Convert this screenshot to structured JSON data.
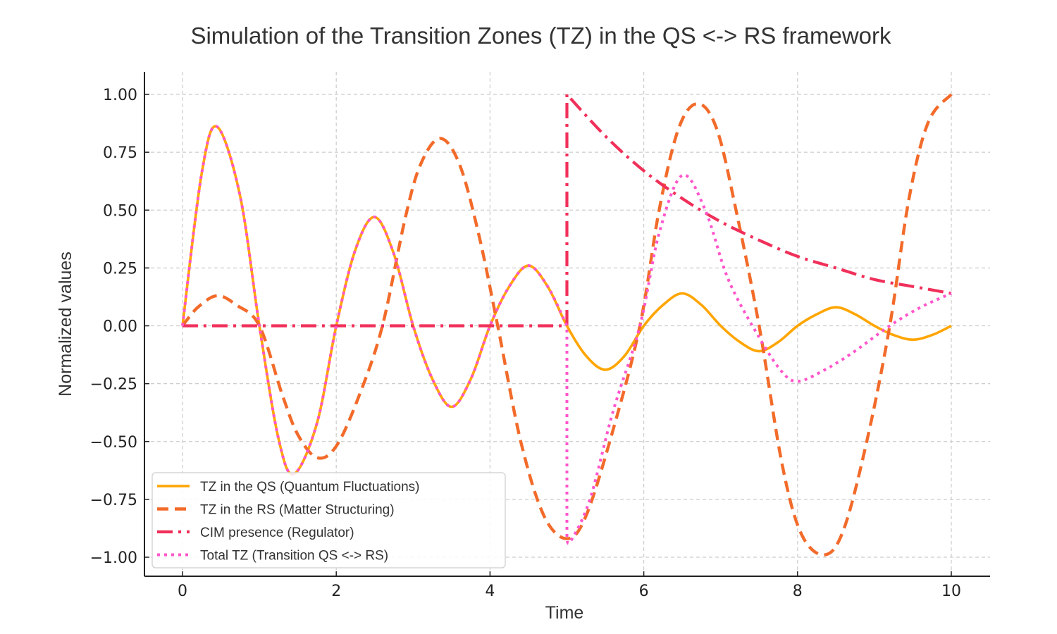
{
  "chart_data": {
    "type": "line",
    "title": "Simulation of the Transition Zones (TZ) in the QS <-> RS framework",
    "xlabel": "Time",
    "ylabel": "Normalized values",
    "xlim": [
      -0.5,
      10.5
    ],
    "ylim": [
      -1.08,
      1.1
    ],
    "xticks": [
      0,
      2,
      4,
      6,
      8,
      10
    ],
    "xtick_labels": [
      "0",
      "2",
      "4",
      "6",
      "8",
      "10"
    ],
    "yticks": [
      1.0,
      0.75,
      0.5,
      0.25,
      0.0,
      -0.25,
      -0.5,
      -0.75,
      -1.0
    ],
    "ytick_labels": [
      "1.00",
      "0.75",
      "0.50",
      "0.25",
      "0.00",
      "−0.25",
      "−0.50",
      "−0.75",
      "−1.00"
    ],
    "grid": true,
    "legend_position": "lower-left",
    "series": [
      {
        "name": "TZ in the QS (Quantum Fluctuations)",
        "color": "#FFA500",
        "style": "solid",
        "x": [
          0,
          0.25,
          0.45,
          0.75,
          1.0,
          1.25,
          1.45,
          1.75,
          2.0,
          2.25,
          2.5,
          2.75,
          3.0,
          3.25,
          3.5,
          3.75,
          4.0,
          4.25,
          4.5,
          4.75,
          5.0,
          5.25,
          5.5,
          5.75,
          6.0,
          6.25,
          6.5,
          6.75,
          7.0,
          7.25,
          7.5,
          7.75,
          8.0,
          8.25,
          8.5,
          8.75,
          9.0,
          9.25,
          9.5,
          9.75,
          10.0
        ],
        "y": [
          0,
          0.66,
          0.86,
          0.56,
          0,
          -0.49,
          -0.64,
          -0.42,
          0,
          0.33,
          0.47,
          0.31,
          0,
          -0.23,
          -0.35,
          -0.23,
          0,
          0.17,
          0.26,
          0.17,
          0,
          -0.13,
          -0.19,
          -0.13,
          0,
          0.09,
          0.14,
          0.09,
          0,
          -0.07,
          -0.11,
          -0.07,
          0,
          0.05,
          0.08,
          0.05,
          0,
          -0.04,
          -0.06,
          -0.04,
          0
        ]
      },
      {
        "name": "TZ in the RS (Matter Structuring)",
        "color": "#F26B2A",
        "style": "dashed",
        "x": [
          0,
          0.2,
          0.45,
          0.7,
          1.0,
          1.3,
          1.5,
          1.75,
          2.0,
          2.3,
          2.6,
          2.9,
          3.1,
          3.35,
          3.6,
          3.85,
          4.1,
          4.4,
          4.7,
          5.0,
          5.25,
          5.6,
          5.95,
          6.2,
          6.45,
          6.7,
          6.95,
          7.2,
          7.5,
          7.8,
          8.05,
          8.35,
          8.6,
          8.9,
          9.2,
          9.45,
          9.7,
          10.0
        ],
        "y": [
          0,
          0.08,
          0.13,
          0.09,
          0.0,
          -0.3,
          -0.47,
          -0.57,
          -0.52,
          -0.3,
          0.0,
          0.47,
          0.7,
          0.81,
          0.7,
          0.4,
          0.0,
          -0.5,
          -0.82,
          -0.92,
          -0.82,
          -0.45,
          0.0,
          0.5,
          0.85,
          0.96,
          0.85,
          0.5,
          0.0,
          -0.6,
          -0.9,
          -0.99,
          -0.88,
          -0.5,
          0.0,
          0.55,
          0.88,
          1.0
        ]
      },
      {
        "name": "CIM presence (Regulator)",
        "color": "#F0305A",
        "style": "dashdot",
        "x": [
          0,
          5.0,
          5.0,
          5.5,
          6.0,
          6.5,
          7.0,
          7.5,
          8.0,
          8.5,
          9.0,
          9.5,
          10.0
        ],
        "y": [
          0,
          0,
          1.0,
          0.82,
          0.67,
          0.55,
          0.45,
          0.37,
          0.3,
          0.25,
          0.2,
          0.17,
          0.14
        ]
      },
      {
        "name": "Total TZ (Transition QS <-> RS)",
        "color": "#FF55CC",
        "style": "dotted",
        "x": [
          0,
          0.25,
          0.45,
          0.75,
          1.0,
          1.25,
          1.45,
          1.75,
          2.0,
          2.25,
          2.5,
          2.75,
          3.0,
          3.25,
          3.5,
          3.75,
          4.0,
          4.25,
          4.5,
          4.75,
          5.0,
          5.0,
          5.05,
          5.3,
          5.6,
          5.95,
          6.2,
          6.5,
          6.8,
          7.1,
          7.5,
          7.8,
          8.0,
          8.3,
          8.7,
          9.2,
          9.6,
          10.0
        ],
        "y": [
          0,
          0.66,
          0.86,
          0.56,
          0,
          -0.49,
          -0.64,
          -0.42,
          0,
          0.33,
          0.47,
          0.31,
          0,
          -0.23,
          -0.35,
          -0.23,
          0,
          0.17,
          0.26,
          0.17,
          0,
          -0.92,
          -0.93,
          -0.75,
          -0.37,
          0.0,
          0.4,
          0.65,
          0.5,
          0.2,
          -0.05,
          -0.2,
          -0.24,
          -0.2,
          -0.12,
          0.0,
          0.08,
          0.14
        ]
      }
    ]
  }
}
